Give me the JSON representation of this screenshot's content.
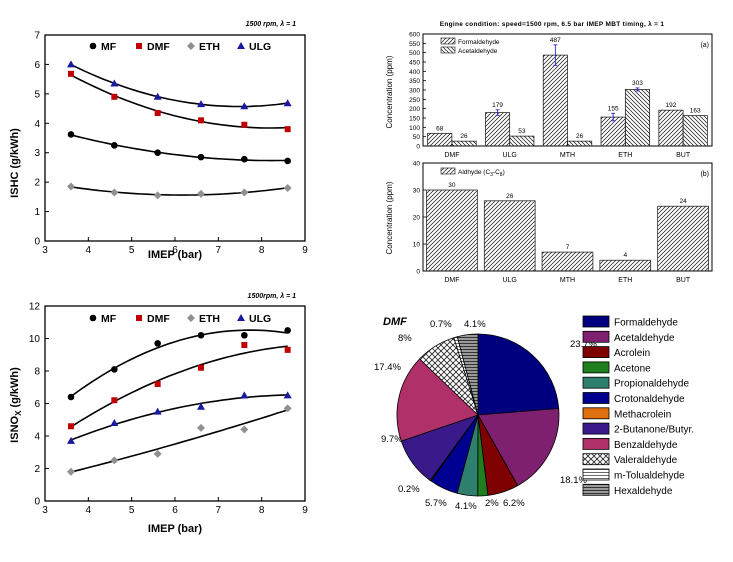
{
  "colors": {
    "MF": "#000000",
    "DMF": "#c00000",
    "ETH": "#909090",
    "ULG": "#1a1aa0",
    "bar_fill": "#ffffff",
    "bar_stroke": "#111111",
    "error": "#2a2ad0"
  },
  "chart_data": [
    {
      "id": "ishc",
      "type": "line",
      "title": "",
      "annotation": "1500 rpm, λ = 1",
      "xlabel": "IMEP (bar)",
      "ylabel": "ISHC (g/kWh)",
      "xlim": [
        3,
        9
      ],
      "ylim": [
        0,
        7
      ],
      "xticks": [
        3,
        4,
        5,
        6,
        7,
        8,
        9
      ],
      "yticks": [
        0,
        1,
        2,
        3,
        4,
        5,
        6,
        7
      ],
      "x": [
        3.6,
        4.6,
        5.6,
        6.6,
        7.6,
        8.6
      ],
      "series": [
        {
          "name": "MF",
          "marker": "circle",
          "values": [
            3.62,
            3.25,
            3.0,
            2.85,
            2.78,
            2.72
          ]
        },
        {
          "name": "DMF",
          "marker": "square",
          "values": [
            5.68,
            4.9,
            4.35,
            4.1,
            3.95,
            3.8
          ]
        },
        {
          "name": "ETH",
          "marker": "diamond",
          "values": [
            1.85,
            1.65,
            1.55,
            1.6,
            1.65,
            1.8
          ]
        },
        {
          "name": "ULG",
          "marker": "triangle",
          "values": [
            6.0,
            5.35,
            4.9,
            4.65,
            4.58,
            4.68
          ]
        }
      ]
    },
    {
      "id": "isnox",
      "type": "line",
      "title": "",
      "annotation": "1500rpm, λ = 1",
      "xlabel": "IMEP (bar)",
      "ylabel": "ISNOx (g/kWh)",
      "ylabel_main": "ISNO",
      "ylabel_sub": "X",
      "ylabel_unit": " (g/kWh)",
      "xlim": [
        3,
        9
      ],
      "ylim": [
        0,
        12
      ],
      "xticks": [
        3,
        4,
        5,
        6,
        7,
        8,
        9
      ],
      "yticks": [
        0,
        2,
        4,
        6,
        8,
        10,
        12
      ],
      "x": [
        3.6,
        4.6,
        5.6,
        6.6,
        7.6,
        8.6
      ],
      "series": [
        {
          "name": "MF",
          "marker": "circle",
          "values": [
            6.4,
            8.1,
            9.7,
            10.2,
            10.2,
            10.5
          ]
        },
        {
          "name": "DMF",
          "marker": "square",
          "values": [
            4.6,
            6.2,
            7.2,
            8.2,
            9.6,
            9.3
          ]
        },
        {
          "name": "ETH",
          "marker": "diamond",
          "values": [
            1.8,
            2.5,
            2.9,
            4.5,
            4.4,
            5.7
          ]
        },
        {
          "name": "ULG",
          "marker": "triangle",
          "values": [
            3.7,
            4.8,
            5.5,
            5.8,
            6.5,
            6.5
          ]
        }
      ]
    },
    {
      "id": "aldehyde-a",
      "type": "bar",
      "title": "Engine condition:  speed=1500 rpm,  6.5 bar IMEP MBT timing,  λ = 1",
      "panel_label": "(a)",
      "ylabel": "Concentration (ppm)",
      "ylim": [
        0,
        600
      ],
      "yticks": [
        0,
        50,
        100,
        150,
        200,
        250,
        300,
        350,
        400,
        450,
        500,
        550,
        600
      ],
      "categories": [
        "DMF",
        "ULG",
        "MTH",
        "ETH",
        "BUT"
      ],
      "series": [
        {
          "name": "Formaldehyde",
          "values": [
            68,
            179,
            487,
            155,
            192
          ],
          "errors": [
            0,
            15,
            55,
            20,
            0
          ],
          "pattern": "fwd"
        },
        {
          "name": "Acetaldehyde",
          "values": [
            26,
            53,
            26,
            303,
            163
          ],
          "errors": [
            0,
            0,
            0,
            8,
            0
          ],
          "pattern": "back"
        }
      ],
      "labels": [
        [
          "68",
          "179",
          "487",
          "155",
          "192"
        ],
        [
          "26",
          "53",
          "26",
          "303",
          "163"
        ]
      ]
    },
    {
      "id": "aldehyde-b",
      "type": "bar",
      "title": "",
      "panel_label": "(b)",
      "ylabel": "Concentration (ppm)",
      "ylim": [
        0,
        40
      ],
      "yticks": [
        0,
        10,
        20,
        30,
        40
      ],
      "categories": [
        "DMF",
        "ULG",
        "MTH",
        "ETH",
        "BUT"
      ],
      "series": [
        {
          "name": "Aldhyde (C3-C8)",
          "values": [
            30,
            26,
            7,
            4,
            24
          ],
          "pattern": "fwd"
        }
      ],
      "legend_main": "Aldhyde (C",
      "legend_sub1": "3",
      "legend_mid": "-C",
      "legend_sub2": "8",
      "legend_end": ")",
      "labels": [
        [
          "30",
          "26",
          "7",
          "4",
          "24"
        ]
      ]
    },
    {
      "id": "dmf-pie",
      "type": "pie",
      "title": "DMF",
      "slices": [
        {
          "name": "Formaldehyde",
          "value": 23.7,
          "label": "23.7%",
          "color": "#00007f",
          "pattern": "solid"
        },
        {
          "name": "Acetaldehyde",
          "value": 18.1,
          "label": "18.1%",
          "color": "#7f1f6f",
          "pattern": "solid"
        },
        {
          "name": "Acrolein",
          "value": 6.2,
          "label": "6.2%",
          "color": "#7f0000",
          "pattern": "solid"
        },
        {
          "name": "Acetone",
          "value": 2.0,
          "label": "2%",
          "color": "#1f7f1f",
          "pattern": "solid"
        },
        {
          "name": "Propionaldehyde",
          "value": 4.1,
          "label": "4.1%",
          "color": "#2f7f6f",
          "pattern": "solid"
        },
        {
          "name": "Crotonaldehyde",
          "value": 5.7,
          "label": "5.7%",
          "color": "#000090",
          "pattern": "solid"
        },
        {
          "name": "Methacrolein",
          "value": 0.2,
          "label": "0.2%",
          "color": "#e07010",
          "pattern": "solid"
        },
        {
          "name": "2-Butanone/Butyr.",
          "value": 9.7,
          "label": "9.7%",
          "color": "#3a1a8a",
          "pattern": "solid"
        },
        {
          "name": "Benzaldehyde",
          "value": 17.4,
          "label": "17.4%",
          "color": "#b0306a",
          "pattern": "solid"
        },
        {
          "name": "Valeraldehyde",
          "value": 8.0,
          "label": "8%",
          "color": "#ffffff",
          "pattern": "cross"
        },
        {
          "name": "m-Tolualdehyde",
          "value": 0.7,
          "label": "0.7%",
          "color": "#ffffff",
          "pattern": "hstripe"
        },
        {
          "name": "Hexaldehyde",
          "value": 4.1,
          "label": "4.1%",
          "color": "#888888",
          "pattern": "hstripe-dark"
        }
      ]
    }
  ]
}
